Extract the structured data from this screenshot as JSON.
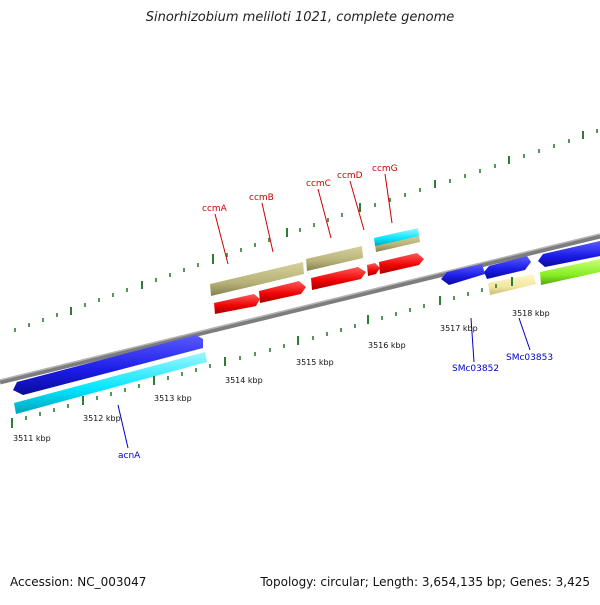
{
  "title": "Sinorhizobium meliloti 1021, complete genome",
  "footer": {
    "accession": "Accession: NC_003047",
    "summary": "Topology: circular; Length: 3,654,135 bp; Genes: 3,425"
  },
  "colors": {
    "backbone": "#8a8a8a",
    "ruler_tick": "#2e7d32",
    "gene_label_red": "#cc0000",
    "gene_label_blue": "#0000cc"
  },
  "scale_labels": [
    "3511 kbp",
    "3512 kbp",
    "3513 kbp",
    "3514 kbp",
    "3515 kbp",
    "3516 kbp",
    "3517 kbp",
    "3518 kbp"
  ],
  "gene_labels": {
    "ccmA": "ccmA",
    "ccmB": "ccmB",
    "ccmC": "ccmC",
    "ccmD": "ccmD",
    "ccmG": "ccmG",
    "acnA": "acnA",
    "SMc03852": "SMc03852",
    "SMc03853": "SMc03853"
  },
  "feature_colors": {
    "red": "#ff0000",
    "khaki": "#b8b27a",
    "blue": "#1a1ae6",
    "cyan": "#00e5ff",
    "pale_yellow": "#f2e6a0",
    "lime": "#88ee22"
  }
}
